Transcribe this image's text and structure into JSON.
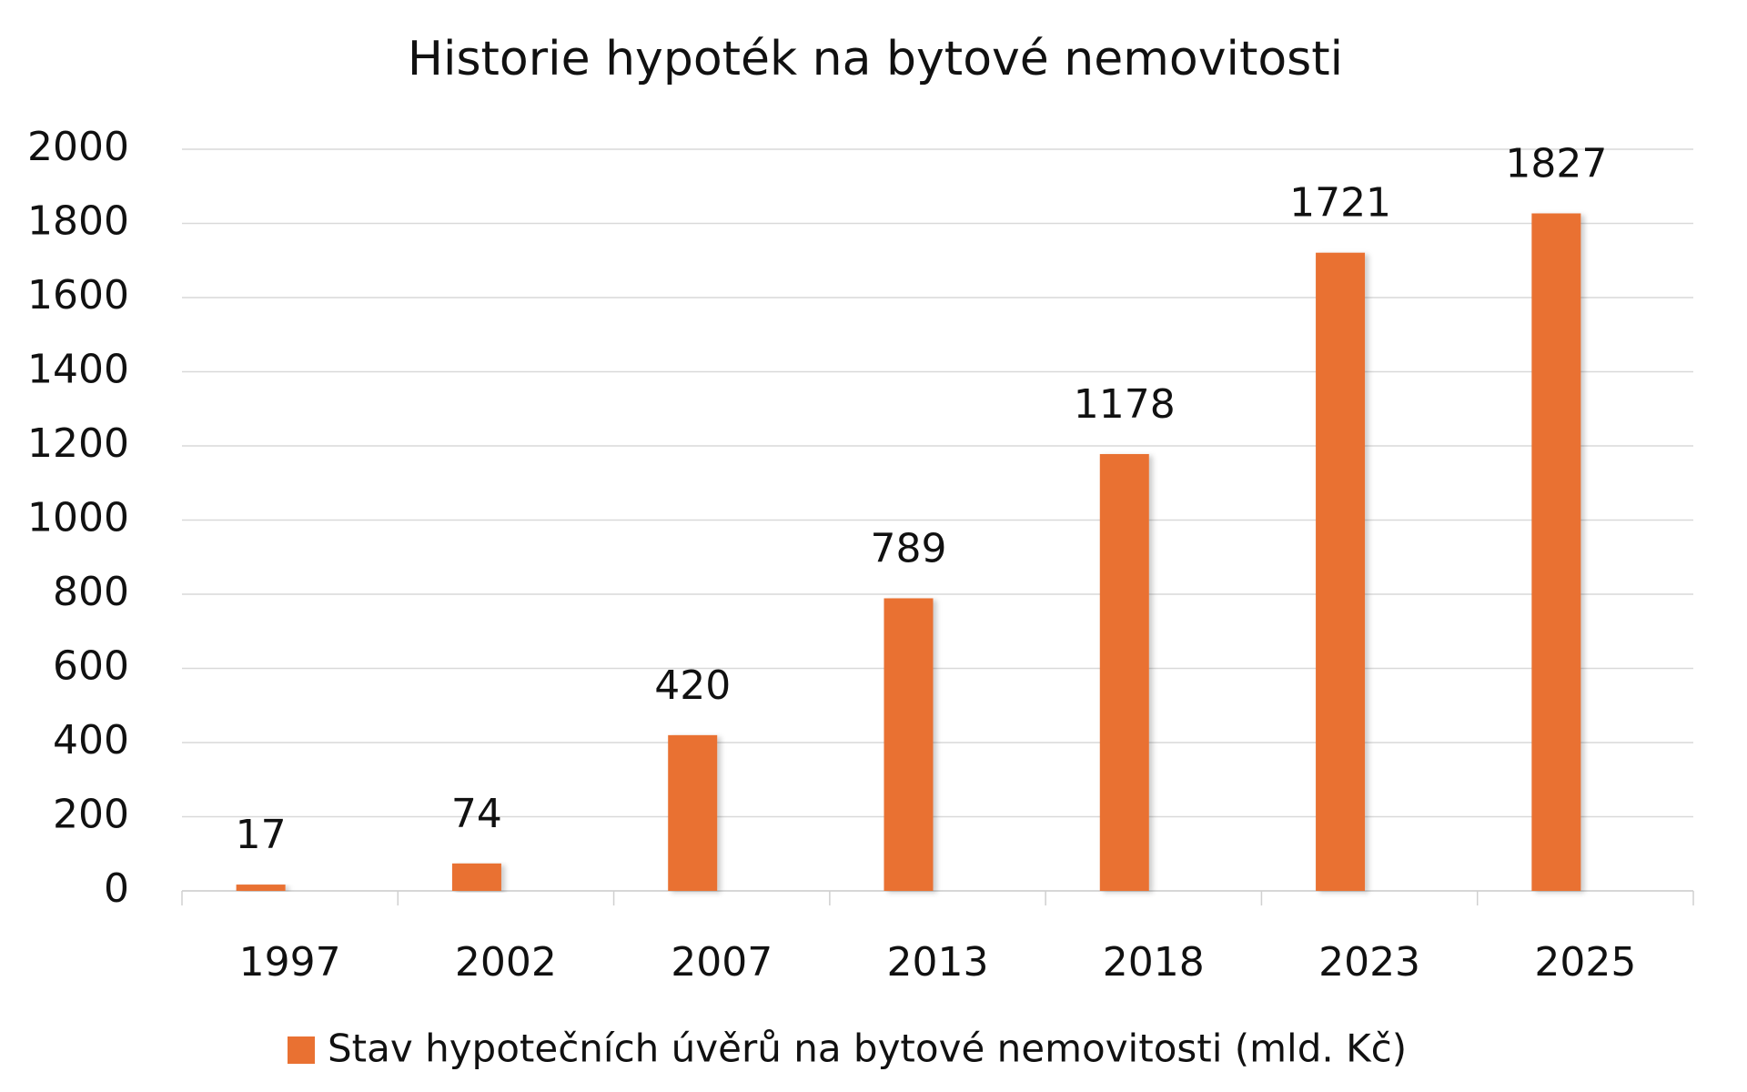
{
  "chart_data": {
    "type": "bar",
    "title": "Historie hypoték na bytové nemovitosti",
    "categories": [
      "1997",
      "2002",
      "2007",
      "2013",
      "2018",
      "2023",
      "2025"
    ],
    "series": [
      {
        "name": "Stav hypotečních úvěrů na bytové nemovitosti (mld. Kč)",
        "color": "#e97132",
        "values": [
          17,
          74,
          420,
          789,
          1178,
          1721,
          1827
        ]
      }
    ],
    "ylim": [
      0,
      2000
    ],
    "yticks": [
      0,
      200,
      400,
      600,
      800,
      1000,
      1200,
      1400,
      1600,
      1800,
      2000
    ],
    "grid": true,
    "legend": "bottom"
  }
}
